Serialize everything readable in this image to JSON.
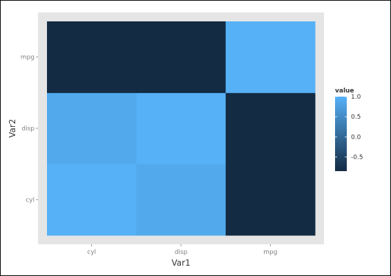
{
  "chart_data": {
    "type": "heatmap",
    "title": "",
    "xlabel": "Var1",
    "ylabel": "Var2",
    "x_categories": [
      "cyl",
      "disp",
      "mpg"
    ],
    "y_categories": [
      "cyl",
      "disp",
      "mpg"
    ],
    "cells": [
      {
        "x": "cyl",
        "y": "cyl",
        "value": 1.0
      },
      {
        "x": "disp",
        "y": "cyl",
        "value": 0.9
      },
      {
        "x": "mpg",
        "y": "cyl",
        "value": -0.85
      },
      {
        "x": "cyl",
        "y": "disp",
        "value": 0.9
      },
      {
        "x": "disp",
        "y": "disp",
        "value": 1.0
      },
      {
        "x": "mpg",
        "y": "disp",
        "value": -0.85
      },
      {
        "x": "cyl",
        "y": "mpg",
        "value": -0.85
      },
      {
        "x": "disp",
        "y": "mpg",
        "value": -0.85
      },
      {
        "x": "mpg",
        "y": "mpg",
        "value": 1.0
      }
    ],
    "legend": {
      "title": "value",
      "position": "right",
      "range": [
        -0.85,
        1.0
      ],
      "ticks": [
        "1.0",
        "0.5",
        "0.0",
        "-0.5"
      ],
      "tick_values": [
        1.0,
        0.5,
        0.0,
        -0.5
      ],
      "low_color": "#132b43",
      "high_color": "#56b1f7"
    },
    "panel_background": "#e5e5e5",
    "grid": false
  }
}
